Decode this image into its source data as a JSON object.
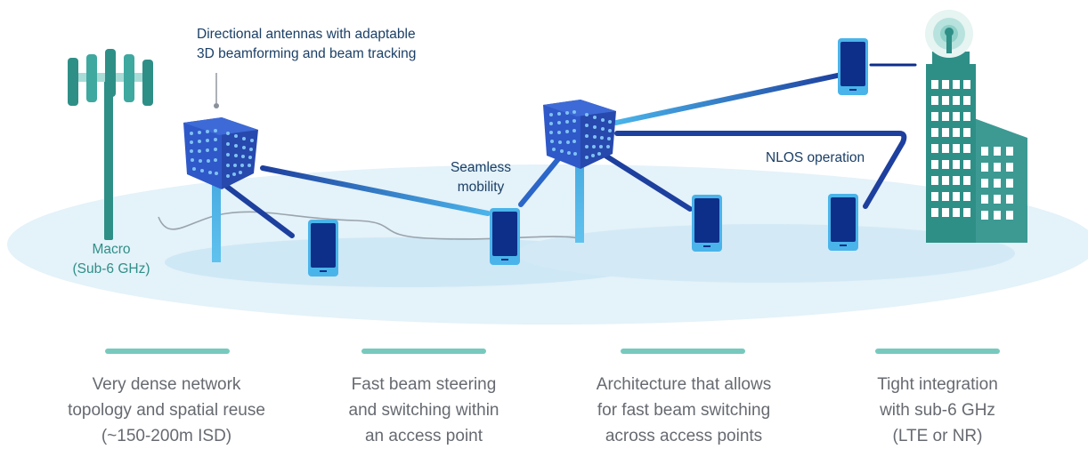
{
  "annotations": {
    "directional_antennas": [
      "Directional antennas with adaptable",
      "3D beamforming and beam tracking"
    ],
    "seamless_mobility": [
      "Seamless",
      "mobility"
    ],
    "nlos_operation": "NLOS operation",
    "macro": [
      "Macro",
      "(Sub-6 GHz)"
    ]
  },
  "features": [
    {
      "lines": [
        "Very dense network",
        "topology and spatial reuse",
        "(~150-200m ISD)"
      ]
    },
    {
      "lines": [
        "Fast beam steering",
        "and switching within",
        "an access point"
      ]
    },
    {
      "lines": [
        "Architecture that allows",
        "for fast beam switching",
        "across access points"
      ]
    },
    {
      "lines": [
        "Tight integration",
        "with sub-6 GHz",
        "(LTE or NR)"
      ]
    }
  ],
  "icons": [
    "macro-tower-icon",
    "access-point-icon",
    "smartphone-icon",
    "building-icon",
    "signal-beacon-icon"
  ],
  "colors": {
    "ground": "#dff0f8",
    "tower": "#2e8f87",
    "tower_light": "#5fbab0",
    "access_point": "#2d52c4",
    "beam_dark": "#1d3f9e",
    "beam_light": "#45b0e8",
    "phone": "#0d2f8a",
    "caption": "#666a70",
    "divider": "#77c9be"
  }
}
